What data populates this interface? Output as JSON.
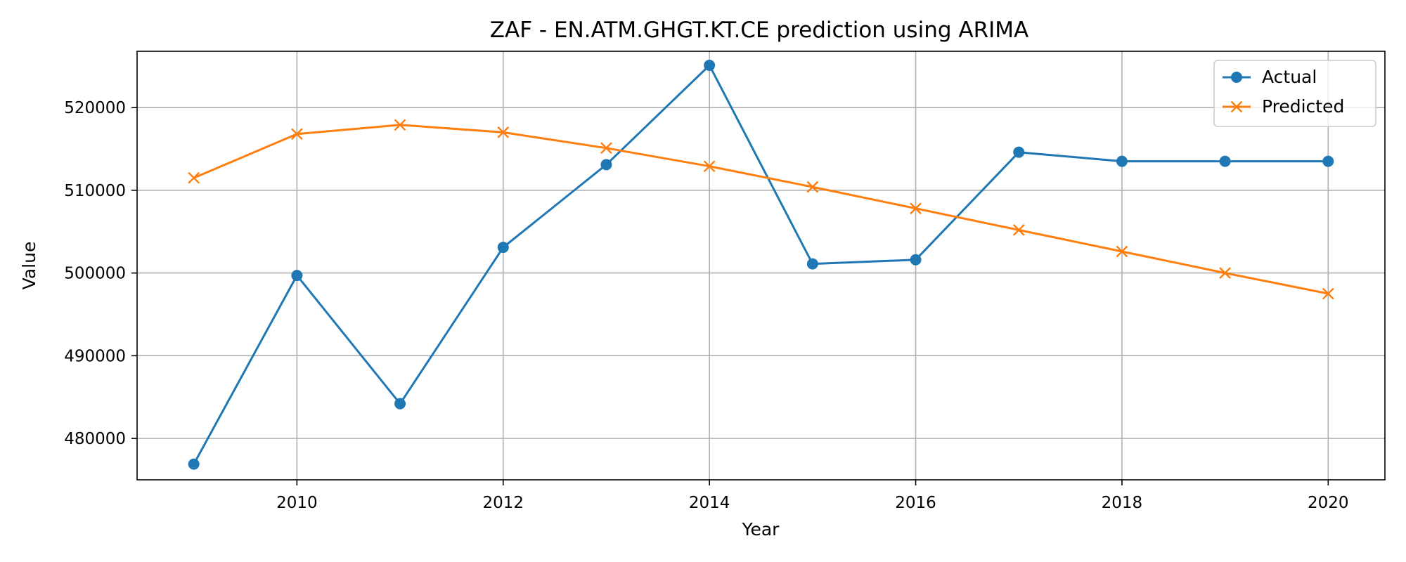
{
  "chart_data": {
    "type": "line",
    "title": "ZAF - EN.ATM.GHGT.KT.CE prediction using ARIMA",
    "xlabel": "Year",
    "ylabel": "Value",
    "x": [
      2009,
      2010,
      2011,
      2012,
      2013,
      2014,
      2015,
      2016,
      2017,
      2018,
      2019,
      2020
    ],
    "xlim": [
      2008.45,
      2020.55
    ],
    "ylim": [
      475000,
      526800
    ],
    "xticks": [
      2010,
      2012,
      2014,
      2016,
      2018,
      2020
    ],
    "yticks": [
      480000,
      490000,
      500000,
      510000,
      520000
    ],
    "grid": true,
    "legend_position": "upper right",
    "series": [
      {
        "name": "Actual",
        "color": "#1f77b4",
        "marker": "circle",
        "values": [
          476900,
          499700,
          484200,
          503100,
          513100,
          525100,
          501100,
          501600,
          514600,
          513500,
          513500,
          513500
        ]
      },
      {
        "name": "Predicted",
        "color": "#ff7f0e",
        "marker": "x",
        "values": [
          511500,
          516800,
          517900,
          517000,
          515100,
          512900,
          510400,
          507800,
          505200,
          502600,
          500000,
          497500
        ]
      }
    ]
  }
}
